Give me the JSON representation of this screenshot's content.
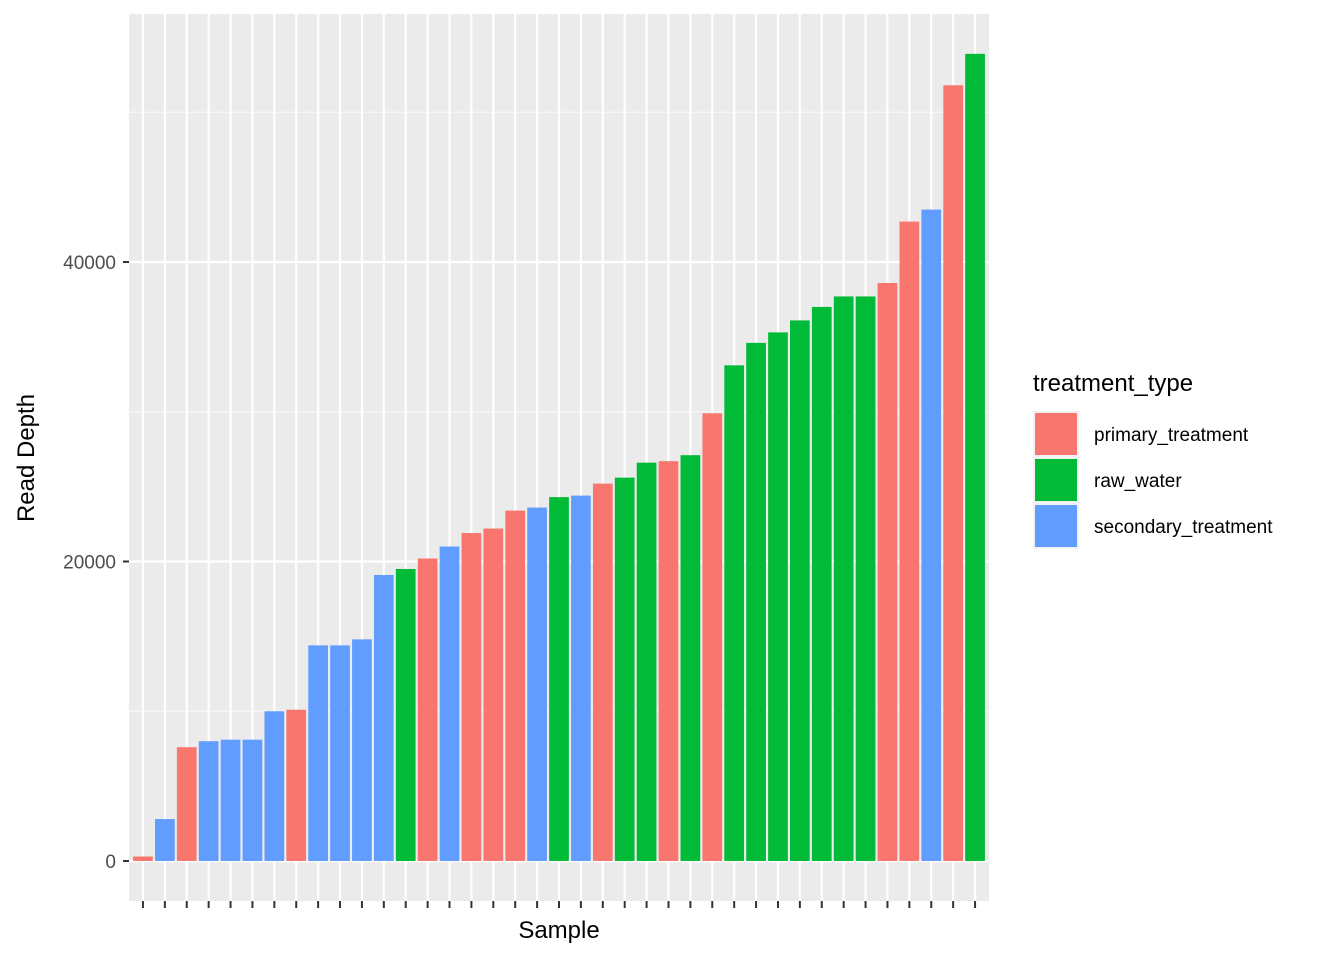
{
  "chart_data": {
    "type": "bar",
    "xlabel": "Sample",
    "ylabel": "Read Depth",
    "ylim": [
      0,
      54000
    ],
    "yticks": [
      0,
      20000,
      40000
    ],
    "yticks_labels": [
      "0",
      "20000",
      "40000"
    ],
    "x_tick_labels_shown": false,
    "grid": true,
    "legend": {
      "title": "treatment_type",
      "position": "right",
      "entries": [
        {
          "name": "primary_treatment",
          "color": "#F8766D"
        },
        {
          "name": "raw_water",
          "color": "#00BA38"
        },
        {
          "name": "secondary_treatment",
          "color": "#619CFF"
        }
      ]
    },
    "bars": [
      {
        "group": "primary_treatment",
        "value": 300
      },
      {
        "group": "secondary_treatment",
        "value": 2800
      },
      {
        "group": "primary_treatment",
        "value": 7600
      },
      {
        "group": "secondary_treatment",
        "value": 8000
      },
      {
        "group": "secondary_treatment",
        "value": 8100
      },
      {
        "group": "secondary_treatment",
        "value": 8100
      },
      {
        "group": "secondary_treatment",
        "value": 10000
      },
      {
        "group": "primary_treatment",
        "value": 10100
      },
      {
        "group": "secondary_treatment",
        "value": 14400
      },
      {
        "group": "secondary_treatment",
        "value": 14400
      },
      {
        "group": "secondary_treatment",
        "value": 14800
      },
      {
        "group": "secondary_treatment",
        "value": 19100
      },
      {
        "group": "raw_water",
        "value": 19500
      },
      {
        "group": "primary_treatment",
        "value": 20200
      },
      {
        "group": "secondary_treatment",
        "value": 21000
      },
      {
        "group": "primary_treatment",
        "value": 21900
      },
      {
        "group": "primary_treatment",
        "value": 22200
      },
      {
        "group": "primary_treatment",
        "value": 23400
      },
      {
        "group": "secondary_treatment",
        "value": 23600
      },
      {
        "group": "raw_water",
        "value": 24300
      },
      {
        "group": "secondary_treatment",
        "value": 24400
      },
      {
        "group": "primary_treatment",
        "value": 25200
      },
      {
        "group": "raw_water",
        "value": 25600
      },
      {
        "group": "raw_water",
        "value": 26600
      },
      {
        "group": "primary_treatment",
        "value": 26700
      },
      {
        "group": "raw_water",
        "value": 27100
      },
      {
        "group": "primary_treatment",
        "value": 29900
      },
      {
        "group": "raw_water",
        "value": 33100
      },
      {
        "group": "raw_water",
        "value": 34600
      },
      {
        "group": "raw_water",
        "value": 35300
      },
      {
        "group": "raw_water",
        "value": 36100
      },
      {
        "group": "raw_water",
        "value": 37000
      },
      {
        "group": "raw_water",
        "value": 37700
      },
      {
        "group": "raw_water",
        "value": 37700
      },
      {
        "group": "primary_treatment",
        "value": 38600
      },
      {
        "group": "primary_treatment",
        "value": 42700
      },
      {
        "group": "secondary_treatment",
        "value": 43500
      },
      {
        "group": "primary_treatment",
        "value": 51800
      },
      {
        "group": "raw_water",
        "value": 53900
      }
    ]
  },
  "colors": {
    "panel_background": "#EBEBEB",
    "grid_major": "#FFFFFF",
    "grid_minor": "#F7F7F7",
    "tick_color": "#333333"
  }
}
